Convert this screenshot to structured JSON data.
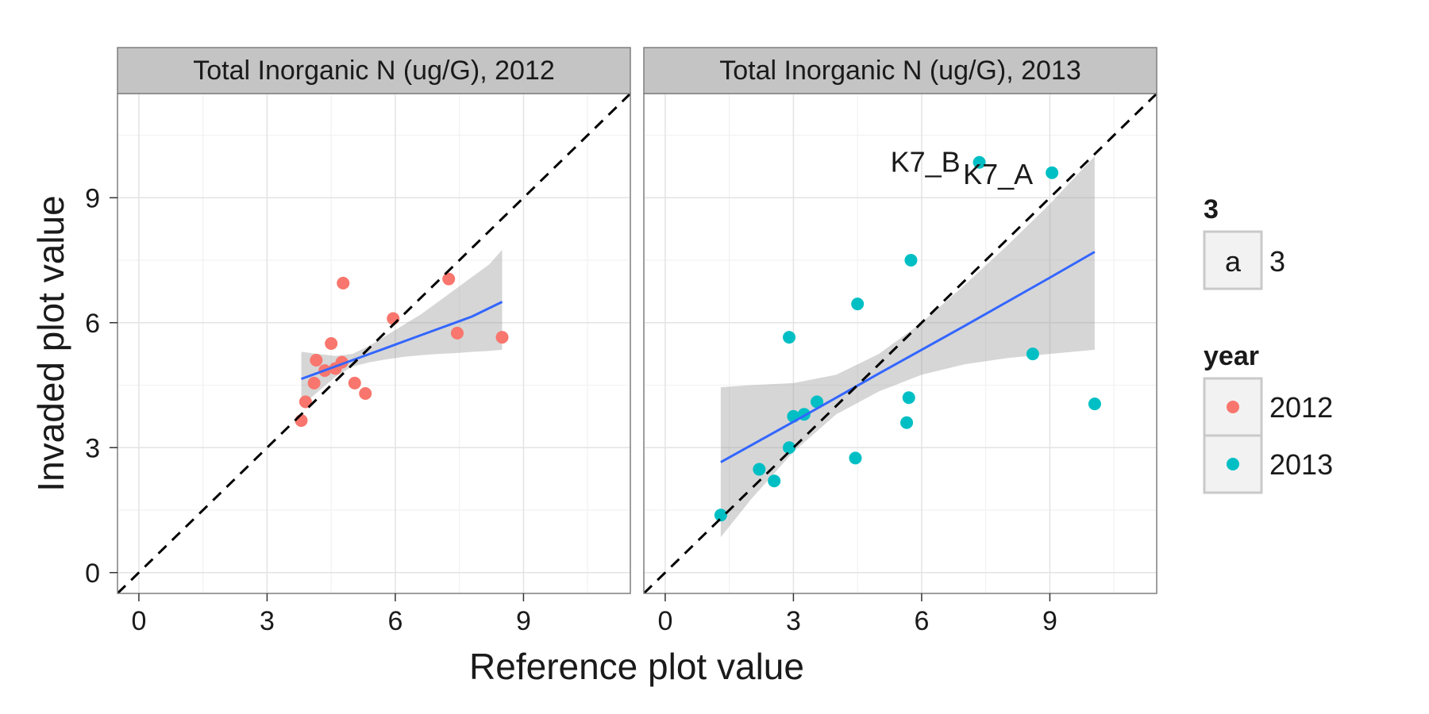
{
  "chart_data": {
    "type": "scatter",
    "xlabel": "Reference plot value",
    "ylabel": "Invaded plot value",
    "xlim": [
      -0.5,
      11.5
    ],
    "ylim": [
      -0.5,
      11.5
    ],
    "x_ticks": [
      0,
      3,
      6,
      9
    ],
    "y_ticks": [
      0,
      3,
      6,
      9
    ],
    "grid": true,
    "reference_line": {
      "style": "dashed",
      "slope": 1,
      "intercept": 0
    },
    "legend_position": "right",
    "colors": {
      "2012": "#F8766D",
      "2013": "#00BFC4",
      "fit": "#3366FF",
      "ribbon": "#999999"
    },
    "legend": {
      "groups": [
        {
          "title": "3",
          "entries": [
            {
              "key": "a",
              "label": "3"
            }
          ]
        },
        {
          "title": "year",
          "entries": [
            {
              "label": "2012"
            },
            {
              "label": "2013"
            }
          ]
        }
      ]
    },
    "panels": [
      {
        "title": "Total Inorganic N (ug/G), 2012",
        "year": "2012",
        "points": [
          {
            "x": 3.8,
            "y": 3.65
          },
          {
            "x": 3.9,
            "y": 4.1
          },
          {
            "x": 4.1,
            "y": 4.55
          },
          {
            "x": 4.15,
            "y": 5.1
          },
          {
            "x": 4.35,
            "y": 4.85
          },
          {
            "x": 4.5,
            "y": 5.5
          },
          {
            "x": 4.6,
            "y": 4.9
          },
          {
            "x": 4.75,
            "y": 5.05
          },
          {
            "x": 4.78,
            "y": 6.95
          },
          {
            "x": 5.05,
            "y": 4.55
          },
          {
            "x": 5.3,
            "y": 4.3
          },
          {
            "x": 5.95,
            "y": 6.1
          },
          {
            "x": 7.25,
            "y": 7.05
          },
          {
            "x": 7.45,
            "y": 5.75
          },
          {
            "x": 8.5,
            "y": 5.65
          }
        ],
        "fit": {
          "x": [
            3.8,
            4.2,
            4.6,
            5.0,
            5.4,
            5.8,
            6.2,
            6.6,
            7.0,
            7.4,
            7.8,
            8.2,
            8.5
          ],
          "y": [
            4.65,
            4.8,
            4.95,
            5.1,
            5.25,
            5.4,
            5.55,
            5.7,
            5.85,
            6.0,
            6.15,
            6.35,
            6.5
          ],
          "lower": [
            4.0,
            4.35,
            4.7,
            4.95,
            5.05,
            5.12,
            5.18,
            5.22,
            5.25,
            5.27,
            5.3,
            5.32,
            5.35
          ],
          "upper": [
            5.3,
            5.25,
            5.2,
            5.25,
            5.45,
            5.7,
            5.95,
            6.2,
            6.5,
            6.8,
            7.1,
            7.4,
            7.75
          ]
        }
      },
      {
        "title": "Total Inorganic N (ug/G), 2013",
        "year": "2013",
        "points": [
          {
            "x": 1.3,
            "y": 1.38
          },
          {
            "x": 2.2,
            "y": 2.48
          },
          {
            "x": 2.55,
            "y": 2.2
          },
          {
            "x": 2.9,
            "y": 5.65
          },
          {
            "x": 2.9,
            "y": 3.0
          },
          {
            "x": 3.0,
            "y": 3.75
          },
          {
            "x": 3.25,
            "y": 3.8
          },
          {
            "x": 3.55,
            "y": 4.1
          },
          {
            "x": 4.45,
            "y": 2.75
          },
          {
            "x": 4.5,
            "y": 6.45
          },
          {
            "x": 5.65,
            "y": 3.6
          },
          {
            "x": 5.7,
            "y": 4.2
          },
          {
            "x": 5.75,
            "y": 7.5
          },
          {
            "x": 7.35,
            "y": 9.85
          },
          {
            "x": 8.6,
            "y": 5.25
          },
          {
            "x": 9.05,
            "y": 9.6
          },
          {
            "x": 10.05,
            "y": 4.05
          }
        ],
        "fit": {
          "x": [
            1.3,
            2.0,
            3.0,
            4.0,
            5.0,
            6.0,
            7.0,
            8.0,
            9.0,
            10.05
          ],
          "y": [
            2.65,
            3.05,
            3.62,
            4.2,
            4.78,
            5.35,
            5.92,
            6.5,
            7.08,
            7.7
          ],
          "lower": [
            0.85,
            1.75,
            2.9,
            3.8,
            4.35,
            4.75,
            5.0,
            5.15,
            5.25,
            5.35
          ],
          "upper": [
            4.45,
            4.5,
            4.55,
            4.75,
            5.25,
            6.0,
            6.9,
            7.85,
            8.85,
            10.0
          ]
        },
        "labels": [
          {
            "text": "K7_B",
            "x": 7.35,
            "y": 9.85
          },
          {
            "text": "K7_A",
            "x": 9.05,
            "y": 9.6
          }
        ]
      }
    ]
  }
}
